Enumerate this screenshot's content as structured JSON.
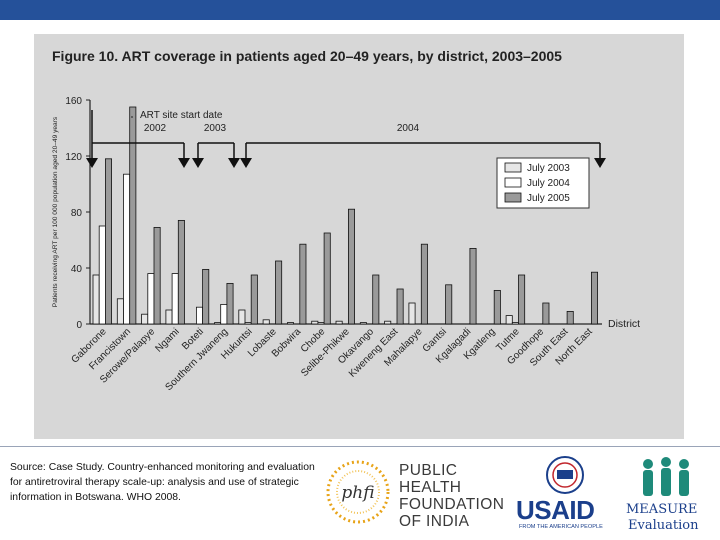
{
  "slide": {
    "accent_color": "#25519a"
  },
  "figure": {
    "title": "Figure 10.   ART coverage in patients aged 20–49 years, by district, 2003–2005"
  },
  "chart_data": {
    "type": "bar",
    "title": "ART coverage in patients aged 20–49 years, by district, 2003–2005",
    "ylabel": "Patients receiving ART per 100 000 population aged 20–49 years",
    "xlabel": "District",
    "ylim": [
      0,
      160
    ],
    "yticks": [
      0,
      40,
      80,
      120,
      160
    ],
    "categories": [
      "Gaborone",
      "Francistown",
      "Serowe/Palapye",
      "Ngami",
      "Boteti",
      "Southern Jwaneng",
      "Hukuntsi",
      "Lobaste",
      "Bobwira",
      "Chobe",
      "Selibe-Phikwe",
      "Okavango",
      "Kweneng East",
      "Mahalapye",
      "Gantsi",
      "Kgalagadi",
      "Kgatleng",
      "Tutme",
      "Goodhope",
      "South East",
      "North East"
    ],
    "series": [
      {
        "name": "July 2003",
        "color": "#e6e6e6",
        "values": [
          35,
          18,
          7,
          10,
          0,
          1,
          10,
          3,
          1,
          2,
          2,
          1,
          2,
          15,
          0,
          0,
          0,
          6,
          0,
          0,
          0
        ]
      },
      {
        "name": "July 2004",
        "color": "#ffffff",
        "values": [
          70,
          107,
          36,
          36,
          12,
          14,
          1,
          0,
          0,
          1,
          0,
          0,
          0,
          0,
          0,
          0,
          0,
          1,
          0,
          0,
          0
        ]
      },
      {
        "name": "July 2005",
        "color": "#9a9a9a",
        "values": [
          118,
          155,
          69,
          74,
          39,
          29,
          35,
          45,
          57,
          65,
          82,
          35,
          25,
          57,
          28,
          54,
          24,
          35,
          15,
          9,
          37
        ]
      }
    ],
    "legend": {
      "position": "top-right"
    },
    "annotations": {
      "start_date_label": "ART site start date",
      "years": [
        "2002",
        "2003",
        "2004"
      ]
    }
  },
  "source": "Source: Case Study. Country-enhanced monitoring and evaluation for antiretroviral therapy scale-up: analysis and use of strategic information in Botswana. WHO 2008.",
  "logos": {
    "phfi": {
      "mark": "phfi",
      "lines": [
        "PUBLIC",
        "HEALTH",
        "FOUNDATION",
        "OF INDIA"
      ]
    },
    "usaid": {
      "word": "USAID",
      "tagline": "FROM THE AMERICAN PEOPLE"
    },
    "measure": {
      "word": "MEASURE",
      "sub": "Evaluation"
    }
  }
}
